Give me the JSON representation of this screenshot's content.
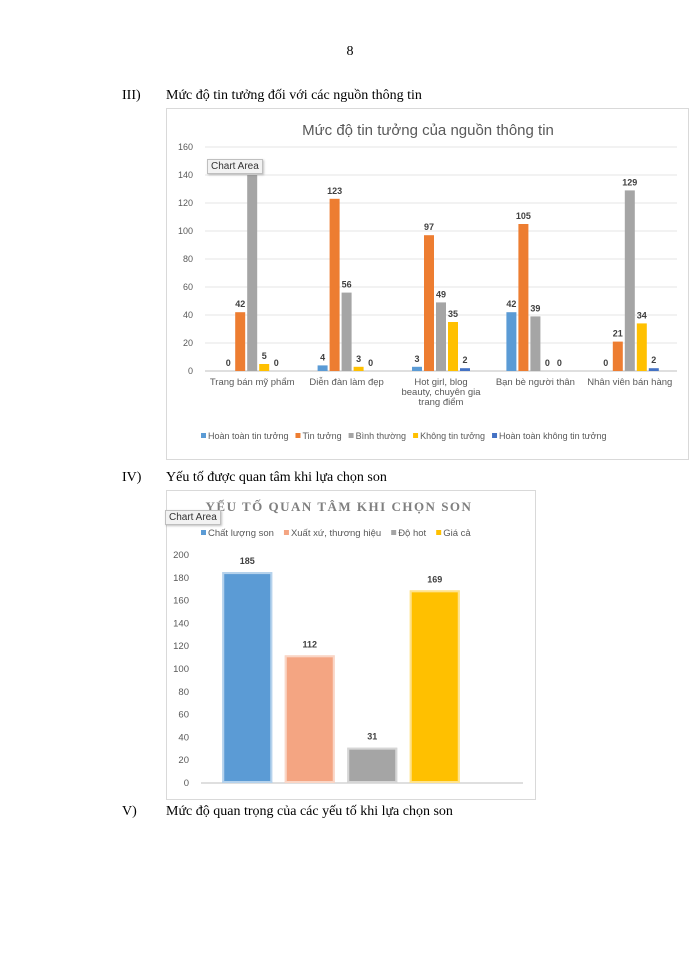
{
  "page_number": "8",
  "sections": [
    {
      "number": "III)",
      "title": "Mức độ tin tưởng đối với các nguồn thông tin"
    },
    {
      "number": "IV)",
      "title": "Yếu tố được quan tâm khi lựa chọn son"
    },
    {
      "number": "V)",
      "title": "Mức độ quan trọng của các yếu tố khi lựa chọn son"
    }
  ],
  "chart_area_label": "Chart Area",
  "chart_data": [
    {
      "type": "bar",
      "title": "Mức độ tin tưởng của nguồn thông tin",
      "categories": [
        [
          "Trang bán mỹ phẩm"
        ],
        [
          "Diễn đàn làm đẹp"
        ],
        [
          "Hot girl, blog",
          "beauty, chuyên gia",
          "trang điểm"
        ],
        [
          "Bạn bè người thân"
        ],
        [
          "Nhân viên bán hàng"
        ]
      ],
      "series": [
        {
          "name": "Hoàn toàn tin tưởng",
          "color": "#5b9bd5",
          "values": [
            0,
            4,
            3,
            42,
            0
          ]
        },
        {
          "name": "Tin tưởng",
          "color": "#ed7d31",
          "values": [
            42,
            123,
            97,
            105,
            21
          ]
        },
        {
          "name": "Bình thường",
          "color": "#a5a5a5",
          "values": [
            140,
            56,
            49,
            39,
            129
          ]
        },
        {
          "name": "Không tin tưởng",
          "color": "#ffc000",
          "values": [
            5,
            3,
            35,
            0,
            34
          ]
        },
        {
          "name": "Hoàn toàn không tin tưởng",
          "color": "#4472c4",
          "values": [
            0,
            0,
            2,
            0,
            2
          ]
        }
      ],
      "data_labels": [
        [
          "0",
          "42",
          "",
          "5",
          "0"
        ],
        [
          "4",
          "123",
          "56",
          "3",
          "0"
        ],
        [
          "3",
          "97",
          "49",
          "35",
          "2"
        ],
        [
          "42",
          "105",
          "39",
          "0",
          "0"
        ],
        [
          "0",
          "21",
          "129",
          "34",
          "2"
        ]
      ],
      "yticks": [
        0,
        20,
        40,
        60,
        80,
        100,
        120,
        140,
        160
      ],
      "ylim": [
        0,
        160
      ],
      "grid": true,
      "legend": "bottom"
    },
    {
      "type": "bar",
      "title": "YẾU TỐ QUAN TÂM KHI CHỌN SON",
      "categories": [
        "Chất lượng son",
        "Xuất xứ, thương hiệu",
        "Độ hot",
        "Giá cả"
      ],
      "values": [
        185,
        112,
        31,
        169
      ],
      "colors": [
        "#5b9bd5",
        "#f4a582",
        "#a5a5a5",
        "#ffc000"
      ],
      "yticks": [
        0,
        20,
        40,
        60,
        80,
        100,
        120,
        140,
        160,
        180,
        200
      ],
      "ylim": [
        0,
        200
      ],
      "grid": false,
      "legend": "top"
    }
  ]
}
